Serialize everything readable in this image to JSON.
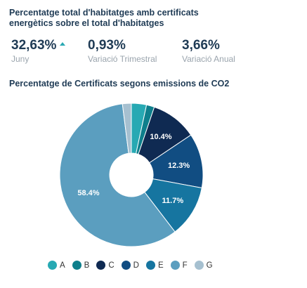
{
  "header": {
    "title": "Percentatge total d'habitatges amb certificats energètics sobre el total d'habitatges"
  },
  "kpis": [
    {
      "value": "32,63%",
      "label": "Juny",
      "trend": "up-arrow-icon"
    },
    {
      "value": "0,93%",
      "label": "Variació Trimestral"
    },
    {
      "value": "3,66%",
      "label": "Variació Anual"
    }
  ],
  "chart_data": {
    "type": "pie",
    "title": "Percentatge de Certificats segons emissions de CO2",
    "categories": [
      "A",
      "B",
      "C",
      "D",
      "E",
      "F",
      "G"
    ],
    "values": [
      3.4,
      1.8,
      10.4,
      12.3,
      11.7,
      58.4,
      2.0
    ],
    "data_labels": [
      "",
      "",
      "10.4%",
      "12.3%",
      "11.7%",
      "58.4%",
      ""
    ],
    "colors": [
      "#27a9b3",
      "#0e7f8c",
      "#0f2a52",
      "#114d82",
      "#1675a0",
      "#5b9ebf",
      "#a6c0d0"
    ],
    "donut": true,
    "legend_placement": "bottom"
  }
}
